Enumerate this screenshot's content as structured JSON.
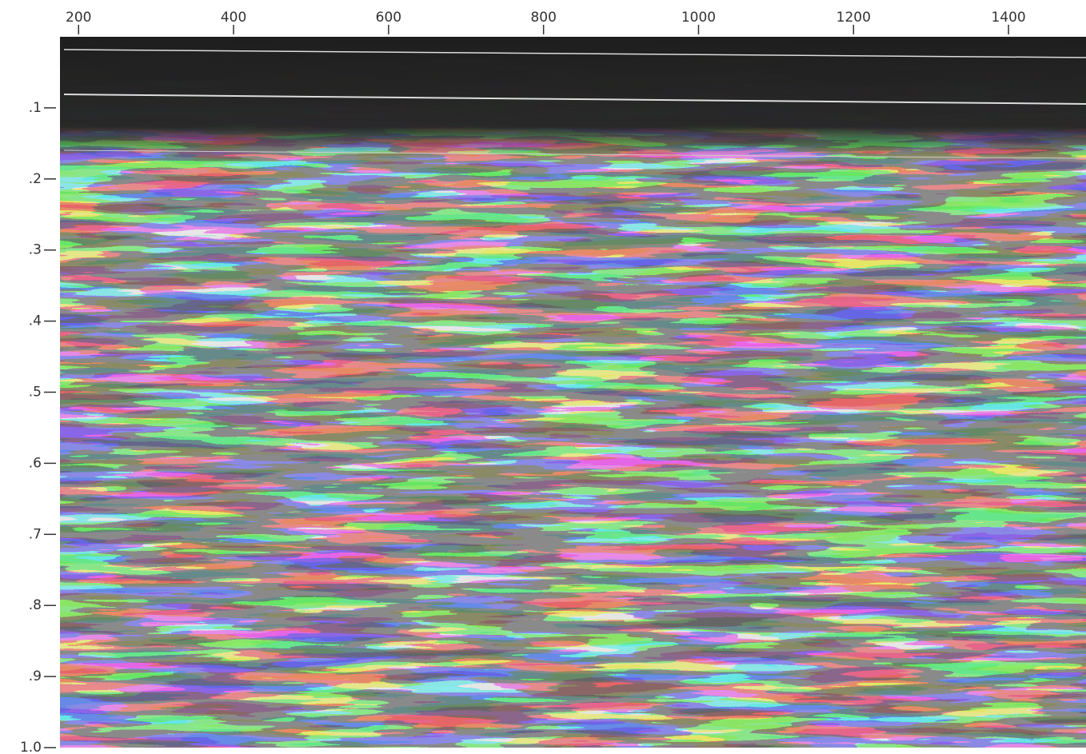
{
  "chart_data": {
    "type": "image",
    "xlim": [
      176,
      1500
    ],
    "ylim": [
      0,
      1
    ],
    "xticks": [
      200,
      400,
      600,
      800,
      1000,
      1200,
      1400
    ],
    "yticks": [
      {
        "value": 0.1,
        "label": ".1"
      },
      {
        "value": 0.2,
        "label": ".2"
      },
      {
        "value": 0.3,
        "label": ".3"
      },
      {
        "value": 0.4,
        "label": ".4"
      },
      {
        "value": 0.5,
        "label": ".5"
      },
      {
        "value": 0.6,
        "label": ".6"
      },
      {
        "value": 0.7,
        "label": ".7"
      },
      {
        "value": 0.8,
        "label": ".8"
      },
      {
        "value": 0.9,
        "label": ".9"
      },
      {
        "value": 1,
        "label": "1.0"
      }
    ]
  }
}
